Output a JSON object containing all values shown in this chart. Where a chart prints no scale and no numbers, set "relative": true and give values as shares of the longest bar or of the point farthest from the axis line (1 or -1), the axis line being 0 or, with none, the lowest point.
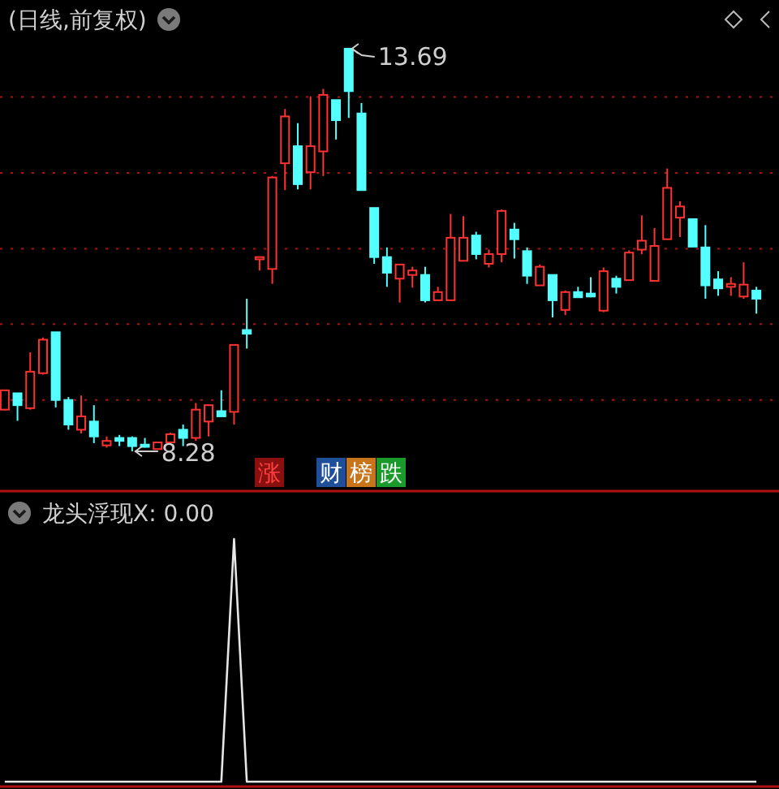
{
  "chart_data": [
    {
      "type": "candlestick",
      "title": "(日线,前复权)",
      "categories": [
        null,
        null,
        null,
        null,
        null,
        null,
        null,
        null,
        null,
        null,
        null,
        null,
        null,
        null,
        null,
        null,
        null,
        null,
        null,
        null,
        null,
        null,
        null,
        null,
        null,
        null,
        null,
        null,
        null,
        null,
        null,
        null,
        null,
        null,
        null,
        null,
        null,
        null,
        null,
        null,
        null,
        null,
        null,
        null,
        null,
        null,
        null,
        null,
        null,
        null,
        null,
        null,
        null,
        null,
        null,
        null,
        null,
        null,
        null,
        null
      ],
      "ohlc": [
        [
          8.84,
          9.11,
          8.83,
          9.1
        ],
        [
          9.06,
          9.06,
          8.69,
          8.9
        ],
        [
          8.86,
          9.61,
          8.84,
          9.35
        ],
        [
          9.33,
          9.81,
          9.31,
          9.78
        ],
        [
          9.88,
          9.88,
          8.87,
          8.97
        ],
        [
          8.97,
          9.01,
          8.57,
          8.64
        ],
        [
          8.57,
          9.03,
          8.52,
          8.75
        ],
        [
          8.68,
          8.9,
          8.39,
          8.48
        ],
        [
          8.36,
          8.48,
          8.33,
          8.42
        ],
        [
          8.46,
          8.5,
          8.35,
          8.42
        ],
        [
          8.46,
          8.48,
          8.28,
          8.35
        ],
        [
          8.37,
          8.46,
          8.33,
          8.34
        ],
        [
          8.31,
          8.4,
          8.3,
          8.4
        ],
        [
          8.4,
          8.53,
          8.39,
          8.51
        ],
        [
          8.57,
          8.64,
          8.35,
          8.46
        ],
        [
          8.46,
          8.93,
          8.42,
          8.84
        ],
        [
          8.68,
          8.91,
          8.48,
          8.9
        ],
        [
          8.82,
          9.1,
          8.75,
          8.75
        ],
        [
          8.81,
          9.71,
          8.64,
          9.71
        ],
        [
          9.91,
          10.33,
          9.66,
          9.86
        ],
        [
          10.86,
          10.89,
          10.71,
          10.89
        ],
        [
          10.73,
          11.98,
          10.53,
          11.96
        ],
        [
          12.15,
          12.88,
          11.79,
          12.78
        ],
        [
          12.38,
          12.69,
          11.8,
          11.87
        ],
        [
          12.03,
          13.05,
          11.8,
          12.38
        ],
        [
          12.31,
          13.15,
          11.98,
          13.07
        ],
        [
          13.0,
          13.0,
          12.47,
          12.73
        ],
        [
          13.69,
          13.69,
          12.76,
          13.12
        ],
        [
          12.82,
          12.96,
          11.79,
          11.79
        ],
        [
          11.55,
          11.55,
          10.8,
          10.89
        ],
        [
          10.89,
          11.02,
          10.49,
          10.68
        ],
        [
          10.6,
          10.79,
          10.28,
          10.79
        ],
        [
          10.65,
          10.76,
          10.48,
          10.71
        ],
        [
          10.65,
          10.76,
          10.28,
          10.31
        ],
        [
          10.31,
          10.49,
          10.31,
          10.42
        ],
        [
          10.31,
          11.47,
          10.31,
          11.15
        ],
        [
          10.84,
          11.44,
          10.84,
          11.15
        ],
        [
          11.18,
          11.23,
          10.86,
          10.93
        ],
        [
          10.8,
          10.99,
          10.75,
          10.93
        ],
        [
          10.93,
          11.53,
          10.82,
          11.51
        ],
        [
          11.26,
          11.35,
          10.87,
          11.13
        ],
        [
          10.97,
          11.02,
          10.53,
          10.64
        ],
        [
          10.51,
          10.79,
          10.51,
          10.76
        ],
        [
          10.65,
          10.65,
          10.08,
          10.31
        ],
        [
          10.18,
          10.44,
          10.11,
          10.42
        ],
        [
          10.42,
          10.49,
          10.35,
          10.35
        ],
        [
          10.4,
          10.62,
          10.35,
          10.36
        ],
        [
          10.17,
          10.75,
          10.15,
          10.7
        ],
        [
          10.6,
          10.64,
          10.4,
          10.49
        ],
        [
          10.58,
          10.98,
          10.57,
          10.95
        ],
        [
          10.99,
          11.45,
          10.93,
          11.11
        ],
        [
          10.57,
          11.28,
          10.57,
          11.04
        ],
        [
          11.13,
          12.08,
          11.13,
          11.82
        ],
        [
          11.42,
          11.64,
          11.16,
          11.57
        ],
        [
          11.4,
          11.4,
          11.03,
          11.03
        ],
        [
          11.02,
          11.32,
          10.33,
          10.51
        ],
        [
          10.59,
          10.7,
          10.37,
          10.47
        ],
        [
          10.49,
          10.62,
          10.37,
          10.53
        ],
        [
          10.36,
          10.82,
          10.33,
          10.52
        ],
        [
          10.44,
          10.49,
          10.13,
          10.33
        ]
      ],
      "colors": [
        "#ff3232",
        "#54ffff",
        "#ff3232",
        "#ff3232",
        "#54ffff",
        "#54ffff",
        "#ff3232",
        "#54ffff",
        "#ff3232",
        "#54ffff",
        "#54ffff",
        "#54ffff",
        "#ff3232",
        "#ff3232",
        "#54ffff",
        "#ff3232",
        "#ff3232",
        "#54ffff",
        "#ff3232",
        "#54ffff",
        "#ff3232",
        "#ff3232",
        "#ff3232",
        "#54ffff",
        "#ff3232",
        "#ff3232",
        "#54ffff",
        "#54ffff",
        "#54ffff",
        "#54ffff",
        "#54ffff",
        "#ff3232",
        "#ff3232",
        "#54ffff",
        "#ff3232",
        "#ff3232",
        "#ff3232",
        "#54ffff",
        "#ff3232",
        "#ff3232",
        "#54ffff",
        "#54ffff",
        "#ff3232",
        "#54ffff",
        "#ff3232",
        "#54ffff",
        "#54ffff",
        "#ff3232",
        "#54ffff",
        "#ff3232",
        "#ff3232",
        "#ff3232",
        "#ff3232",
        "#ff3232",
        "#54ffff",
        "#54ffff",
        "#54ffff",
        "#ff3232",
        "#ff3232",
        "#54ffff"
      ],
      "yticks": [
        {
          "value": 8.97,
          "label": null
        },
        {
          "value": 9.99,
          "label": null
        },
        {
          "value": 11.0,
          "label": null
        },
        {
          "value": 12.02,
          "label": null
        },
        {
          "value": 13.04,
          "label": null
        }
      ],
      "grid": "y",
      "annotations": [
        "13.69",
        "8.28",
        "涨",
        "财",
        "榜",
        "跌"
      ]
    },
    {
      "type": "line",
      "title": "龙头浮现X: 0.00",
      "relative": true,
      "categories": [
        null,
        null,
        null,
        null,
        null,
        null,
        null,
        null,
        null,
        null,
        null,
        null,
        null,
        null,
        null,
        null,
        null,
        null,
        null,
        null,
        null,
        null,
        null,
        null,
        null,
        null,
        null,
        null,
        null,
        null,
        null,
        null,
        null,
        null,
        null,
        null,
        null,
        null,
        null,
        null,
        null,
        null,
        null,
        null,
        null,
        null,
        null,
        null,
        null,
        null,
        null,
        null,
        null,
        null,
        null,
        null,
        null,
        null,
        null,
        null
      ],
      "series": [
        {
          "color": "#e6e6e6",
          "values": [
            0,
            0,
            0,
            0,
            0,
            0,
            0,
            0,
            0,
            0,
            0,
            0,
            0,
            0,
            0,
            0,
            0,
            0,
            1,
            0,
            0,
            0,
            0,
            0,
            0,
            0,
            0,
            0,
            0,
            0,
            0,
            0,
            0,
            0,
            0,
            0,
            0,
            0,
            0,
            0,
            0,
            0,
            0,
            0,
            0,
            0,
            0,
            0,
            0,
            0,
            0,
            0,
            0,
            0,
            0,
            0,
            0,
            0,
            0,
            0
          ]
        }
      ]
    }
  ]
}
